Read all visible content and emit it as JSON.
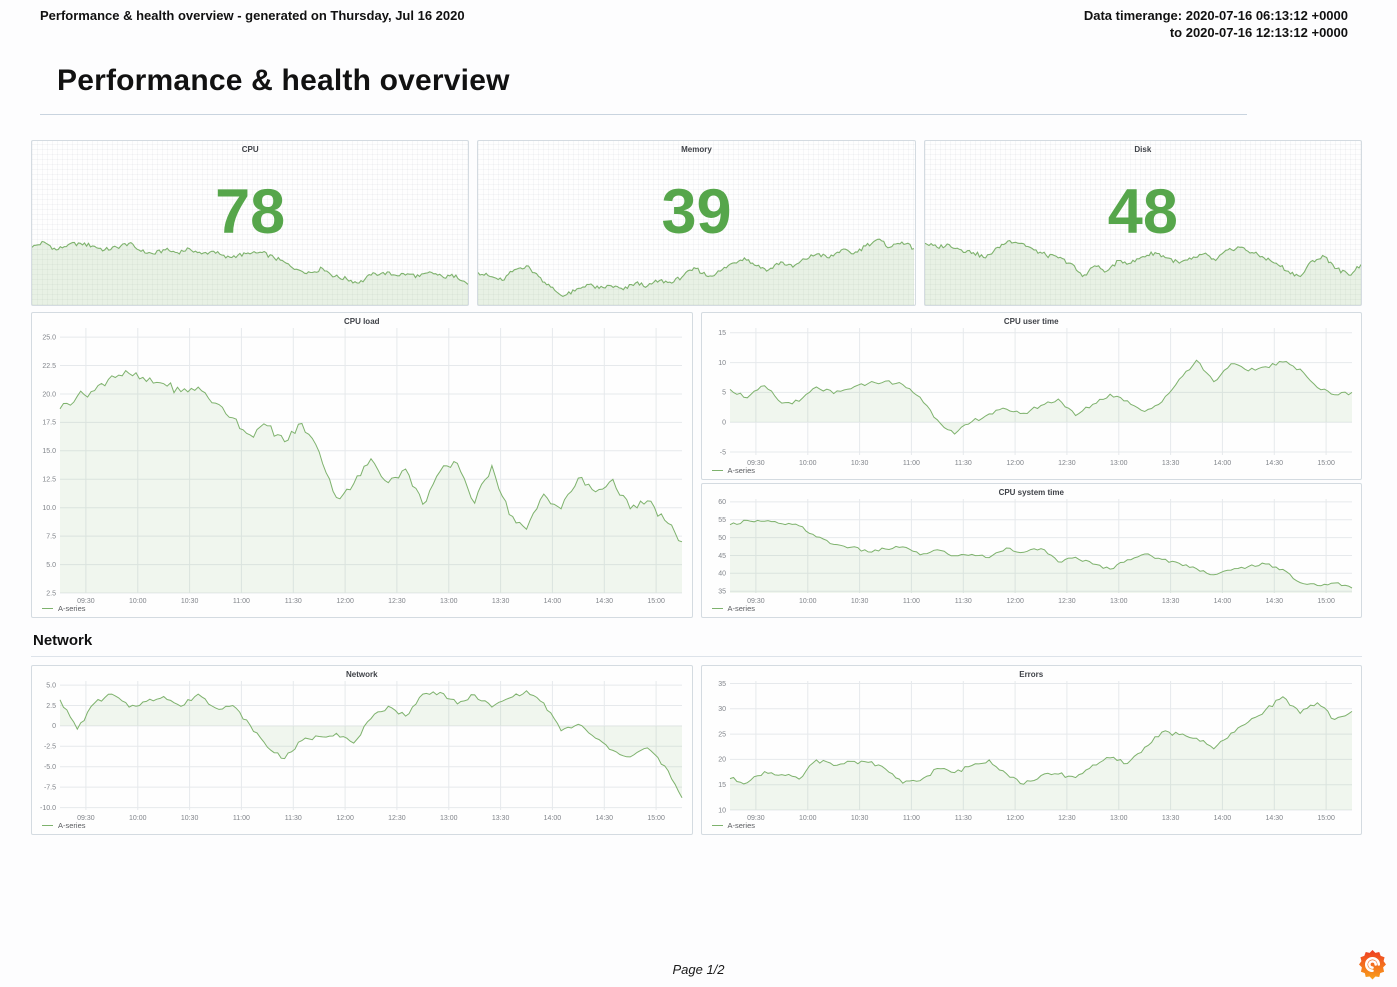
{
  "report": {
    "header_left": "Performance & health overview - generated on Thursday, Jul 16 2020",
    "timerange_line1": "Data timerange: 2020-07-16 06:13:12 +0000",
    "timerange_line2": "to 2020-07-16 12:13:12 +0000",
    "title": "Performance & health overview",
    "section_network": "Network",
    "footer_page": "Page 1/2",
    "footer_logo_icon": "grafana-logo"
  },
  "colors": {
    "stat_value": "#56A64B",
    "series_line": "#7EB26D",
    "series_fill": "rgba(126,178,109,0.11)",
    "grid_line": "#e6e9ec",
    "axis_text": "#80848a",
    "panel_border": "#d4dbe1"
  },
  "time_axis": {
    "x_start": "09:15",
    "x_end": "15:15",
    "x_step_minutes": 10,
    "x_ticks": [
      "09:30",
      "10:00",
      "10:30",
      "11:00",
      "11:30",
      "12:00",
      "12:30",
      "13:00",
      "13:30",
      "14:00",
      "14:30",
      "15:00"
    ]
  },
  "chart_data": [
    {
      "id": "cpu-stat",
      "type": "area",
      "title": "CPU",
      "stat_value": "78",
      "values": [
        52,
        56,
        50,
        54,
        55,
        53,
        50,
        52,
        55,
        49,
        47,
        50,
        48,
        51,
        47,
        49,
        44,
        46,
        47,
        48,
        44,
        40,
        35,
        33,
        36,
        30,
        28,
        25,
        31,
        33,
        31,
        32,
        30,
        33,
        29,
        31,
        24
      ]
    },
    {
      "id": "memory-stat",
      "type": "area",
      "title": "Memory",
      "stat_value": "39",
      "values": [
        33,
        30,
        27,
        35,
        38,
        30,
        22,
        15,
        19,
        24,
        21,
        23,
        20,
        25,
        23,
        27,
        25,
        31,
        36,
        30,
        34,
        40,
        44,
        38,
        35,
        41,
        37,
        43,
        47,
        44,
        50,
        47,
        53,
        58,
        52,
        56,
        51
      ]
    },
    {
      "id": "disk-stat",
      "type": "area",
      "title": "Disk",
      "stat_value": "48",
      "values": [
        55,
        52,
        54,
        50,
        48,
        44,
        52,
        57,
        55,
        50,
        46,
        44,
        40,
        30,
        38,
        34,
        42,
        40,
        45,
        48,
        44,
        40,
        43,
        47,
        42,
        50,
        52,
        48,
        44,
        40,
        34,
        30,
        42,
        45,
        36,
        31,
        39
      ]
    },
    {
      "id": "cpu-load",
      "type": "area",
      "title": "CPU load",
      "legend": "A-series",
      "y_ticks": [
        "2.5",
        "5.0",
        "7.5",
        "10.0",
        "12.5",
        "15.0",
        "17.5",
        "20.0",
        "22.5",
        "25.0"
      ],
      "ylim": [
        2.5,
        25.8
      ],
      "baseline": "bottom",
      "values": [
        18.7,
        19.8,
        20.3,
        21.6,
        21.8,
        21.1,
        20.9,
        20.2,
        20.6,
        19.2,
        17.9,
        16.4,
        17.2,
        15.8,
        17.4,
        14.9,
        10.9,
        12.1,
        14.3,
        12.2,
        13.4,
        10.3,
        13.2,
        13.9,
        10.4,
        13.7,
        9.4,
        8.1,
        11.2,
        9.9,
        12.6,
        11.4,
        12.5,
        9.9,
        10.6,
        8.9,
        7.0
      ]
    },
    {
      "id": "cpu-user-time",
      "type": "area",
      "title": "CPU user time",
      "legend": "A-series",
      "y_ticks": [
        "-5",
        "0",
        "5",
        "10",
        "15"
      ],
      "ylim": [
        -5.5,
        15.8
      ],
      "baseline": "zero",
      "values": [
        5.5,
        4.1,
        6.1,
        3.2,
        3.5,
        5.9,
        4.8,
        5.6,
        6.5,
        6.9,
        6.3,
        4.2,
        0.4,
        -2.0,
        0.1,
        1.4,
        2.2,
        1.5,
        2.8,
        3.9,
        1.1,
        3.0,
        4.7,
        3.6,
        1.8,
        3.4,
        7.2,
        10.4,
        6.8,
        9.8,
        8.6,
        9.3,
        10.1,
        8.9,
        5.8,
        4.6,
        5.0
      ]
    },
    {
      "id": "cpu-system-time",
      "type": "area",
      "title": "CPU system time",
      "legend": "A-series",
      "y_ticks": [
        "35",
        "40",
        "45",
        "50",
        "55",
        "60"
      ],
      "ylim": [
        34.5,
        60.8
      ],
      "baseline": "bottom",
      "values": [
        53.6,
        54.8,
        54.6,
        53.9,
        53.3,
        50.2,
        48.1,
        47.3,
        46.0,
        46.8,
        47.4,
        45.2,
        46.6,
        44.9,
        45.3,
        44.4,
        47.1,
        45.9,
        46.9,
        43.2,
        44.5,
        42.6,
        41.2,
        43.8,
        45.4,
        43.9,
        42.8,
        41.3,
        39.6,
        40.9,
        41.9,
        42.6,
        41.1,
        37.4,
        36.6,
        37.3,
        35.9
      ]
    },
    {
      "id": "network",
      "type": "area",
      "title": "Network",
      "legend": "A-series",
      "y_ticks": [
        "-10.0",
        "-7.5",
        "-5.0",
        "-2.5",
        "0",
        "2.5",
        "5.0"
      ],
      "ylim": [
        -10.3,
        5.5
      ],
      "baseline": "zero",
      "values": [
        3.2,
        -0.4,
        2.8,
        3.9,
        2.3,
        3.0,
        3.6,
        2.4,
        3.9,
        2.2,
        2.5,
        0.1,
        -2.6,
        -4.0,
        -1.8,
        -1.3,
        -0.9,
        -2.1,
        0.9,
        2.4,
        1.2,
        3.9,
        4.1,
        2.7,
        3.8,
        2.3,
        3.4,
        4.3,
        2.8,
        -0.6,
        0.2,
        -1.5,
        -3.0,
        -3.8,
        -2.7,
        -4.9,
        -8.8
      ]
    },
    {
      "id": "errors",
      "type": "area",
      "title": "Errors",
      "legend": "A-series",
      "y_ticks": [
        "10",
        "15",
        "20",
        "25",
        "30",
        "35"
      ],
      "ylim": [
        10,
        35.5
      ],
      "baseline": "bottom",
      "values": [
        16.2,
        15.4,
        17.6,
        17.0,
        16.1,
        19.9,
        18.8,
        19.6,
        19.4,
        18.1,
        15.3,
        15.8,
        18.2,
        17.4,
        18.8,
        19.9,
        17.2,
        15.1,
        16.8,
        17.1,
        16.4,
        18.9,
        20.3,
        19.2,
        22.4,
        25.4,
        24.9,
        24.2,
        22.1,
        25.2,
        27.4,
        29.8,
        32.4,
        29.1,
        31.2,
        27.9,
        29.5
      ]
    }
  ]
}
